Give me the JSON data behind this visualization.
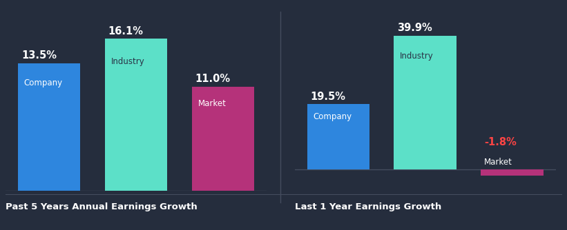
{
  "background_color": "#252d3d",
  "chart1": {
    "title": "Past 5 Years Annual Earnings Growth",
    "bars": [
      {
        "label": "Company",
        "value": 13.5,
        "color": "#2e86de",
        "label_color": "#ffffff"
      },
      {
        "label": "Industry",
        "value": 16.1,
        "color": "#5ce0c8",
        "label_color": "#2a3245"
      },
      {
        "label": "Market",
        "value": 11.0,
        "color": "#b5327a",
        "label_color": "#ffffff"
      }
    ]
  },
  "chart2": {
    "title": "Last 1 Year Earnings Growth",
    "bars": [
      {
        "label": "Company",
        "value": 19.5,
        "color": "#2e86de",
        "label_color": "#ffffff"
      },
      {
        "label": "Industry",
        "value": 39.9,
        "color": "#5ce0c8",
        "label_color": "#2a3245"
      },
      {
        "label": "Market",
        "value": -1.8,
        "color": "#b5327a",
        "label_color": "#ffffff"
      }
    ]
  },
  "text_color": "#ffffff",
  "negative_value_color": "#ff4444",
  "axis_line_color": "#444c5e",
  "divider_color": "#444c5e",
  "title_fontsize": 9.5,
  "label_fontsize": 8.5,
  "value_fontsize": 10.5
}
